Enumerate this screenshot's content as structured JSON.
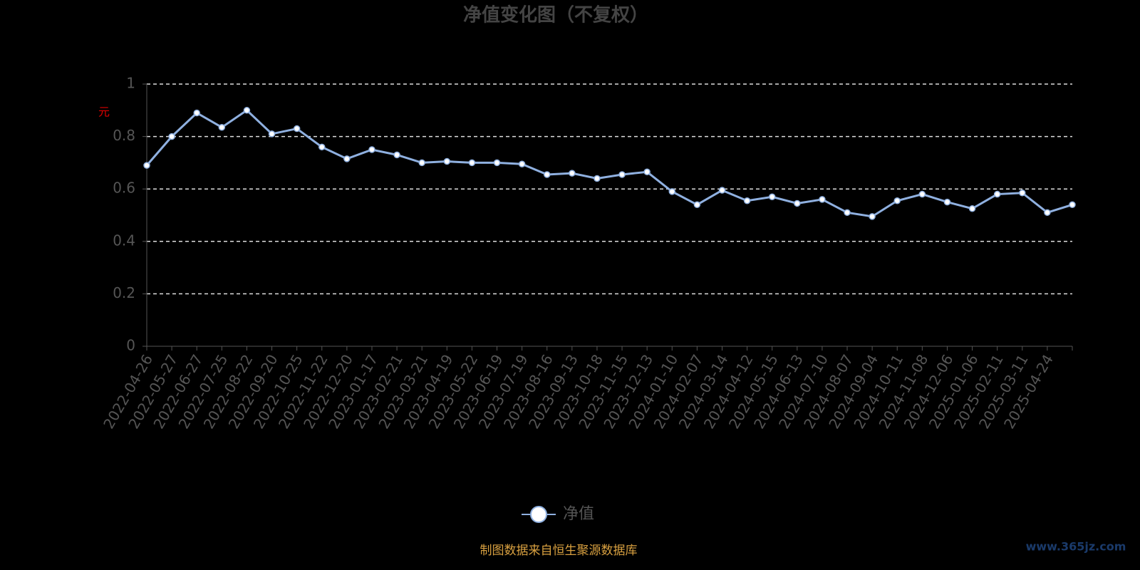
{
  "chart_data": {
    "type": "line",
    "title": "净值变化图（不复权）",
    "y_label": "元",
    "categories": [
      "2022-04-26",
      "2022-05-27",
      "2022-06-27",
      "2022-07-25",
      "2022-08-22",
      "2022-09-20",
      "2022-10-25",
      "2022-11-22",
      "2022-12-20",
      "2023-01-17",
      "2023-02-21",
      "2023-03-21",
      "2023-04-19",
      "2023-05-22",
      "2023-06-19",
      "2023-07-19",
      "2023-08-16",
      "2023-09-13",
      "2023-10-18",
      "2023-11-15",
      "2023-12-13",
      "2024-01-10",
      "2024-02-07",
      "2024-03-14",
      "2024-04-12",
      "2024-05-15",
      "2024-06-13",
      "2024-07-10",
      "2024-08-07",
      "2024-09-04",
      "2024-10-11",
      "2024-11-08",
      "2024-12-06",
      "2025-01-06",
      "2025-02-11",
      "2025-03-11",
      "2025-04-24",
      null
    ],
    "series": [
      {
        "name": "净值",
        "color": "#8fb0e0",
        "values": [
          0.69,
          0.8,
          0.89,
          0.835,
          0.9,
          0.81,
          0.83,
          0.76,
          0.715,
          0.75,
          0.73,
          0.7,
          0.705,
          0.7,
          0.7,
          0.695,
          0.655,
          0.66,
          0.64,
          0.655,
          0.665,
          0.59,
          0.54,
          0.595,
          0.555,
          0.57,
          0.545,
          0.56,
          0.51,
          0.495,
          0.555,
          0.58,
          0.55,
          0.525,
          0.58,
          0.585,
          0.51,
          0.54
        ]
      }
    ],
    "ylim": [
      0,
      1
    ],
    "yticks": [
      0,
      0.2,
      0.4,
      0.6,
      0.8,
      1
    ],
    "grid": true,
    "footer": "制图数据来自恒生聚源数据库",
    "watermark": "www.365jz.com"
  }
}
